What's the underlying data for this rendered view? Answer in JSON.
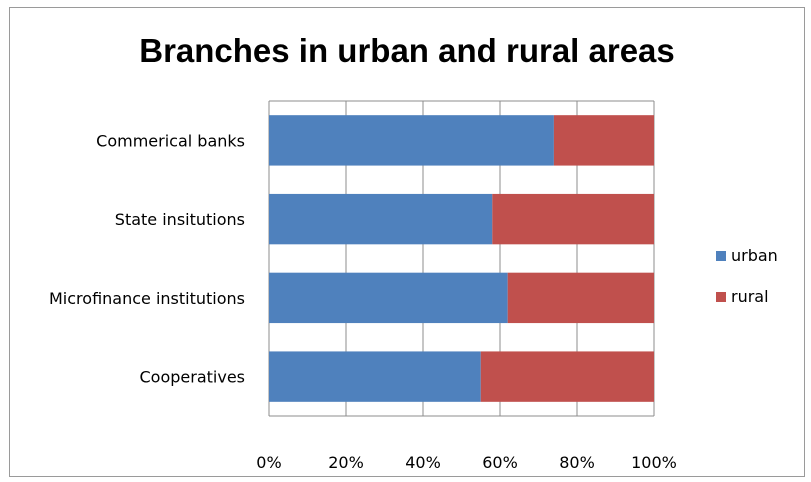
{
  "chart_data": {
    "type": "bar",
    "orientation": "horizontal",
    "stacked": "percent",
    "title": "Branches in urban and rural areas",
    "categories": [
      "Commerical banks",
      "State insitutions",
      "Microfinance institutions",
      "Cooperatives"
    ],
    "series": [
      {
        "name": "urban",
        "color": "#4f81bd",
        "values": [
          74,
          58,
          62,
          55
        ]
      },
      {
        "name": "rural",
        "color": "#c0504d",
        "values": [
          26,
          42,
          38,
          45
        ]
      }
    ],
    "x_ticks": [
      "0%",
      "20%",
      "40%",
      "60%",
      "80%",
      "100%"
    ],
    "xlim": [
      0,
      100
    ],
    "grid": "vertical",
    "legend": "right"
  }
}
